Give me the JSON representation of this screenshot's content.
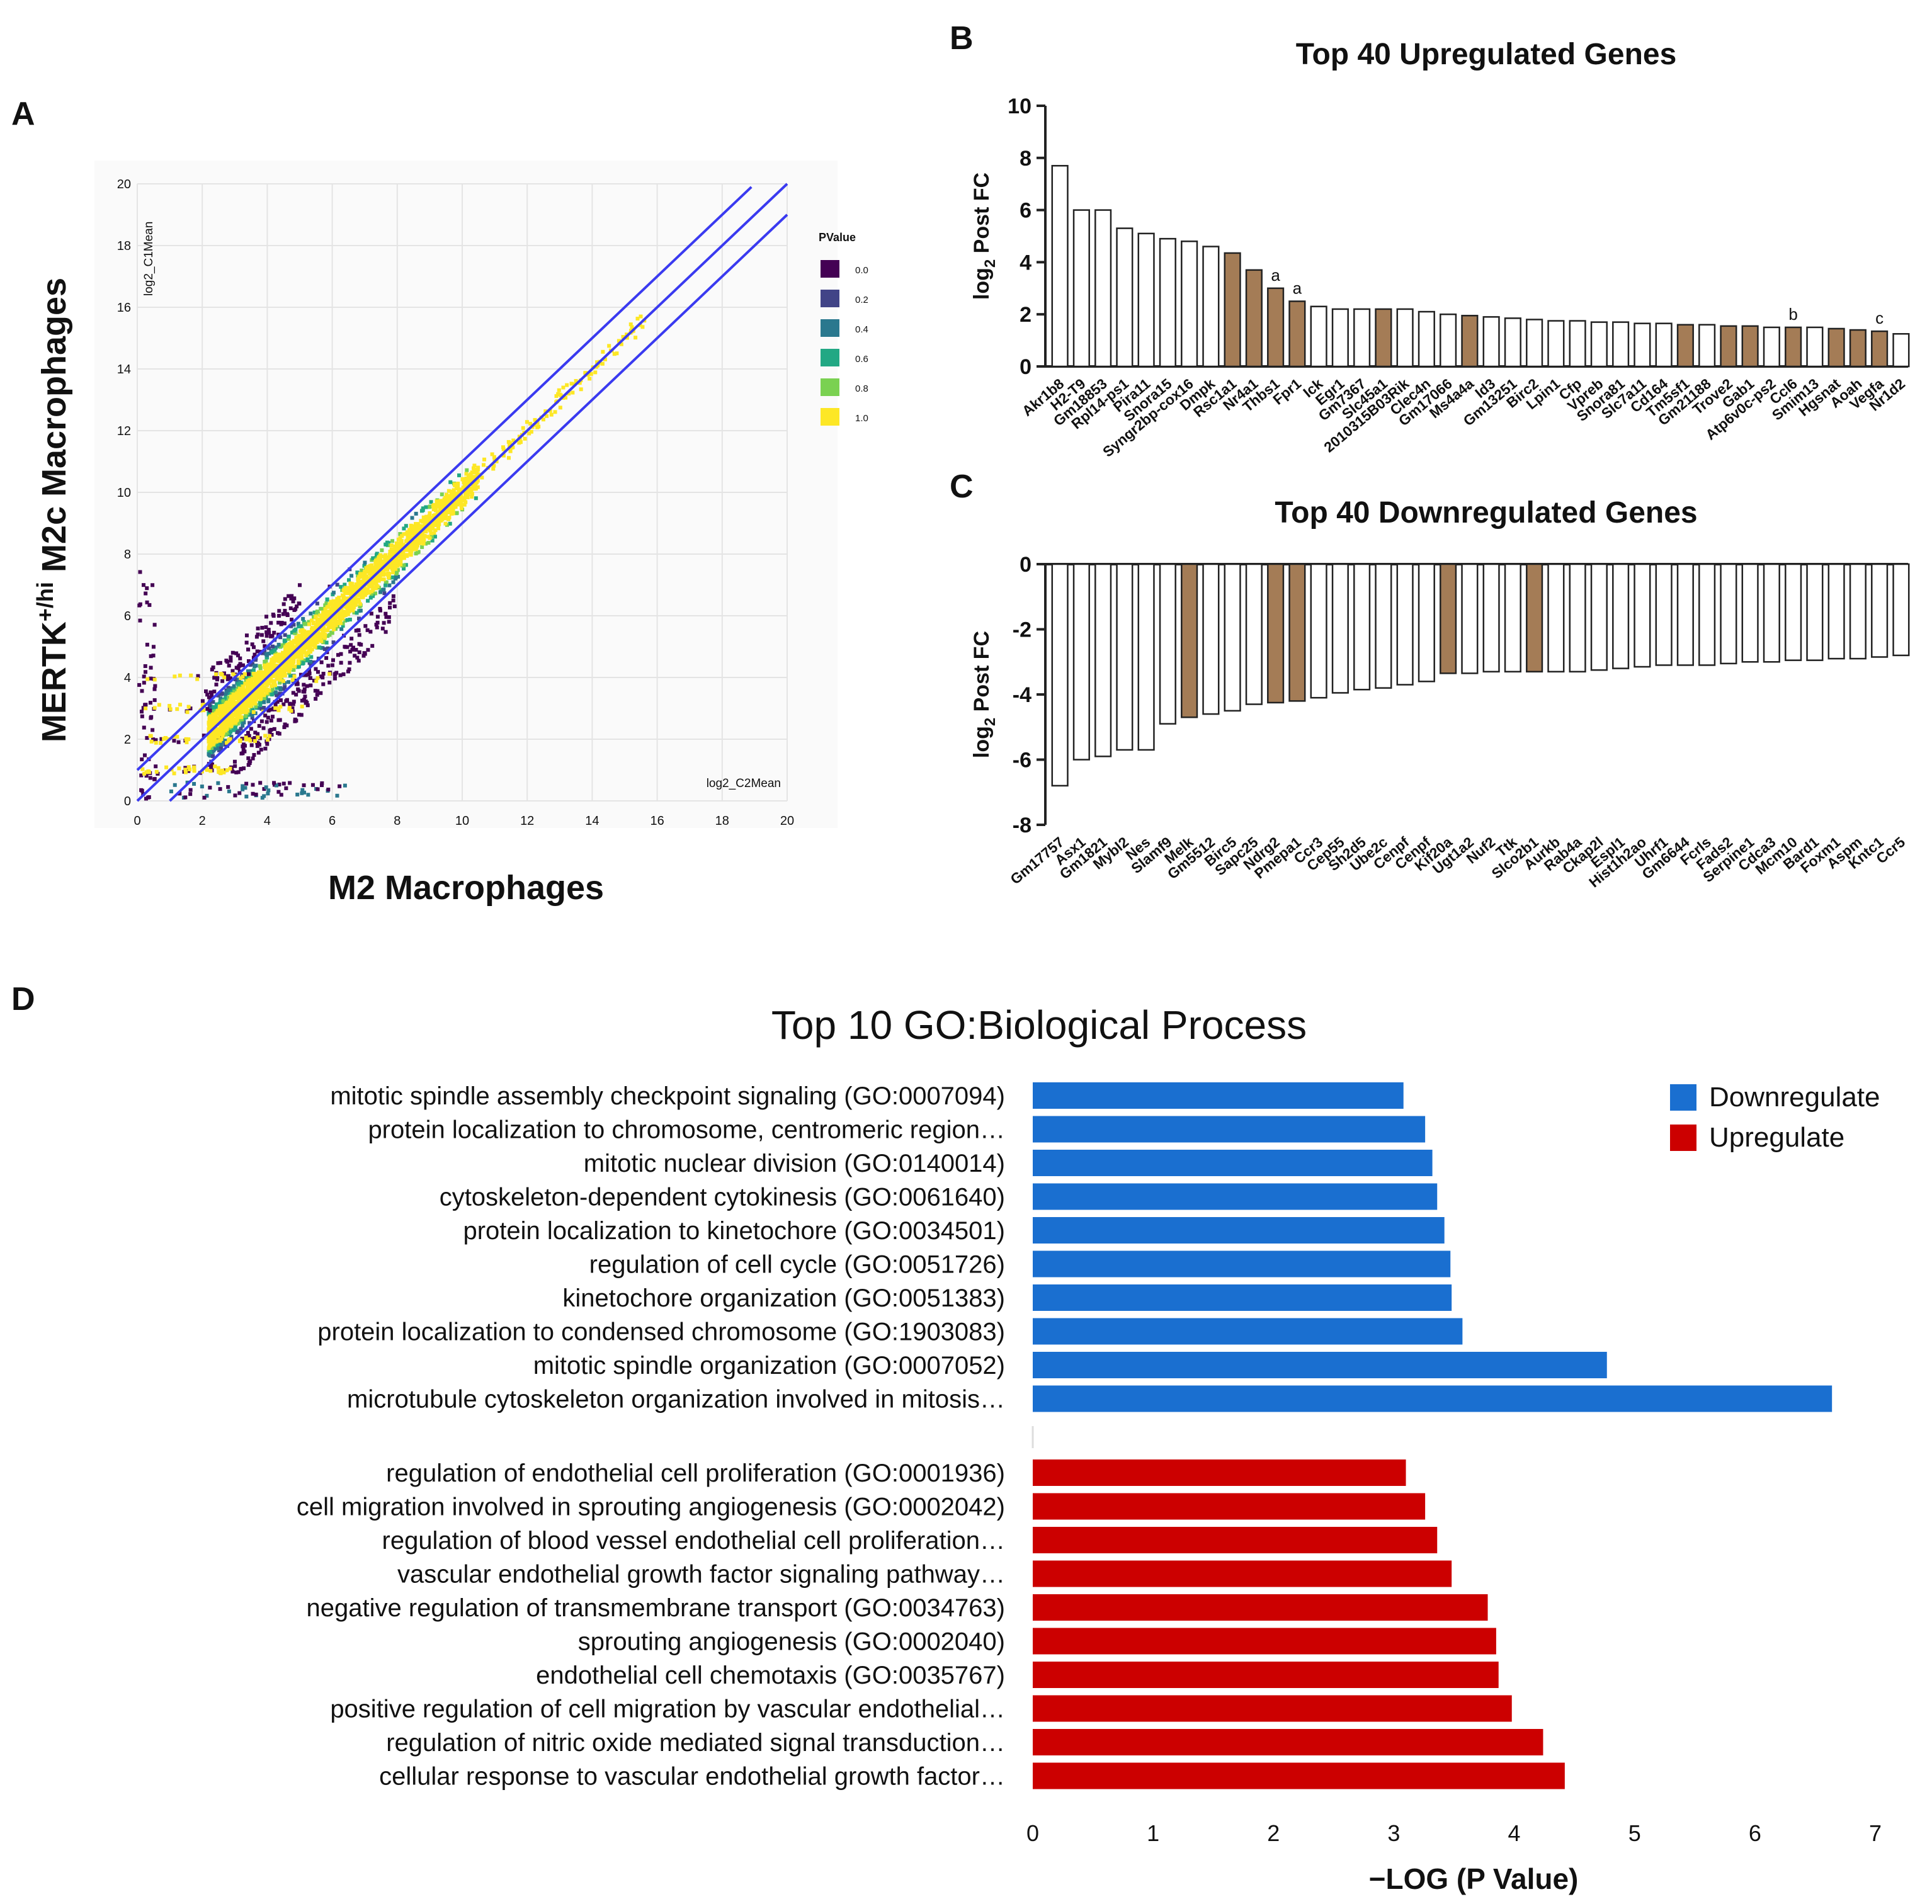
{
  "panels": {
    "a": "A",
    "b": "B",
    "c": "C",
    "d": "D"
  },
  "chart_data": [
    {
      "id": "A",
      "type": "scatter",
      "xlabel": "M2 Macrophages",
      "ylabel": "MERTK",
      "ylabel_sup": "+/hi",
      "ylabel_rest": " M2c Macrophages",
      "inner_xlabel": "log2_C2Mean",
      "inner_ylabel": "log2_C1Mean",
      "xlim": [
        0,
        20
      ],
      "ylim": [
        0,
        20
      ],
      "x_ticks": [
        0,
        2,
        4,
        6,
        8,
        10,
        12,
        14,
        16,
        18,
        20
      ],
      "y_ticks": [
        0,
        2,
        4,
        6,
        8,
        10,
        12,
        14,
        16,
        18,
        20
      ],
      "legend_title": "PValue",
      "legend_items": [
        {
          "label": "0.0",
          "color": "#440154"
        },
        {
          "label": "0.2",
          "color": "#414487"
        },
        {
          "label": "0.4",
          "color": "#2a788e"
        },
        {
          "label": "0.6",
          "color": "#22a884"
        },
        {
          "label": "0.8",
          "color": "#7ad151"
        },
        {
          "label": "1.0",
          "color": "#fde725"
        }
      ],
      "reference_lines": [
        {
          "intercept": 1.0,
          "slope": 1.0
        },
        {
          "intercept": 0.0,
          "slope": 1.0
        },
        {
          "intercept": -1.0,
          "slope": 1.0
        }
      ],
      "line_color": "#3a3af0"
    },
    {
      "id": "B",
      "type": "bar",
      "title": "Top 40 Upregulated Genes",
      "ylabel": "log",
      "ylabel_sub": "2",
      "ylabel_rest": " Post FC",
      "ylim": [
        0,
        10
      ],
      "y_ticks": [
        0,
        2,
        4,
        6,
        8,
        10
      ],
      "categories": [
        "Akr1b8",
        "H2-T9",
        "Gm18853",
        "Rpl14-ps1",
        "Pira11",
        "Snora15",
        "Syngr2bp-cox16",
        "Dmpk",
        "Rsc1a1",
        "Nr4a1",
        "Thbs1",
        "Fpr1",
        "Ick",
        "Egr1",
        "Gm7367",
        "Slc45a1",
        "2010315B03Rik",
        "Clec4n",
        "Gm17066",
        "Ms4a4a",
        "Id3",
        "Gm13251",
        "Birc2",
        "Lpin1",
        "Cfp",
        "Vpreb",
        "Snora81",
        "Slc7a11",
        "Cd164",
        "Tm5sf1",
        "Gm21188",
        "Trove2",
        "Gab1",
        "Atp6v0c-ps2",
        "Ccl6",
        "Smim13",
        "Hgsnat",
        "Aoah",
        "Vegfa",
        "Nr1d2"
      ],
      "values": [
        7.7,
        6.0,
        6.0,
        5.3,
        5.1,
        4.9,
        4.8,
        4.6,
        4.35,
        3.7,
        3.0,
        2.5,
        2.3,
        2.2,
        2.2,
        2.2,
        2.2,
        2.1,
        2.0,
        1.95,
        1.9,
        1.85,
        1.8,
        1.75,
        1.75,
        1.7,
        1.7,
        1.65,
        1.65,
        1.6,
        1.6,
        1.55,
        1.55,
        1.5,
        1.5,
        1.5,
        1.45,
        1.4,
        1.35,
        1.25
      ],
      "highlighted": [
        false,
        false,
        false,
        false,
        false,
        false,
        false,
        false,
        true,
        true,
        true,
        true,
        false,
        false,
        false,
        true,
        false,
        false,
        false,
        true,
        false,
        false,
        false,
        false,
        false,
        false,
        false,
        false,
        false,
        true,
        false,
        true,
        true,
        false,
        true,
        false,
        true,
        true,
        true,
        false
      ],
      "annotations": [
        "",
        "",
        "",
        "",
        "",
        "",
        "",
        "",
        "",
        "",
        "a",
        "a",
        "",
        "",
        "",
        "",
        "",
        "",
        "",
        "",
        "",
        "",
        "",
        "",
        "",
        "",
        "",
        "",
        "",
        "",
        "",
        "",
        "",
        "",
        "b",
        "",
        "",
        "",
        "c",
        ""
      ],
      "highlight_color": "#a47c56"
    },
    {
      "id": "C",
      "type": "bar",
      "title": "Top 40 Downregulated Genes",
      "ylabel": "log",
      "ylabel_sub": "2",
      "ylabel_rest": " Post FC",
      "ylim": [
        -8,
        0
      ],
      "y_ticks": [
        0,
        -2,
        -4,
        -6,
        -8
      ],
      "categories": [
        "Gm17757",
        "Asx1",
        "Gm1821",
        "Mybl2",
        "Nes",
        "Slamf9",
        "Melk",
        "Gm5512",
        "Birc5",
        "Sapc25",
        "Ndrg2",
        "Pmepa1",
        "Ccr3",
        "Cep55",
        "Sh2d5",
        "Ube2c",
        "Cenpf",
        "Cenpf",
        "Kif20a",
        "Ugt1a2",
        "Nuf2",
        "Ttk",
        "Slco2b1",
        "Aurkb",
        "Rab4a",
        "Ckap2l",
        "Espl1",
        "Hist1h2ao",
        "Uhrf1",
        "Gm6644",
        "Fcrls",
        "Fads2",
        "Serpine1",
        "Cdca3",
        "Mcm10",
        "Bard1",
        "Foxm1",
        "Aspm",
        "Kntc1",
        "Ccr5"
      ],
      "values": [
        -6.8,
        -6.0,
        -5.9,
        -5.7,
        -5.7,
        -4.9,
        -4.7,
        -4.6,
        -4.5,
        -4.3,
        -4.25,
        -4.2,
        -4.1,
        -3.95,
        -3.85,
        -3.8,
        -3.7,
        -3.6,
        -3.35,
        -3.35,
        -3.3,
        -3.3,
        -3.3,
        -3.3,
        -3.3,
        -3.25,
        -3.2,
        -3.15,
        -3.1,
        -3.1,
        -3.1,
        -3.05,
        -3.0,
        -3.0,
        -2.95,
        -2.95,
        -2.9,
        -2.9,
        -2.85,
        -2.8
      ],
      "highlighted": [
        false,
        false,
        false,
        false,
        false,
        false,
        true,
        false,
        false,
        false,
        true,
        true,
        false,
        false,
        false,
        false,
        false,
        false,
        true,
        false,
        false,
        false,
        true,
        false,
        false,
        false,
        false,
        false,
        false,
        false,
        false,
        false,
        false,
        false,
        false,
        false,
        false,
        false,
        false,
        false
      ],
      "highlight_color": "#a47c56"
    },
    {
      "id": "D",
      "type": "bar",
      "orientation": "horizontal",
      "title": "Top 10 GO:Biological Process",
      "xlabel": "−LOG (P Value)",
      "xlim": [
        0,
        7
      ],
      "x_ticks": [
        0,
        1,
        2,
        3,
        4,
        5,
        6,
        7
      ],
      "legend": [
        {
          "label": "Downregulate",
          "color": "#1a6fd0"
        },
        {
          "label": "Upregulate",
          "color": "#cc0000"
        }
      ],
      "series": [
        {
          "name": "Downregulate",
          "color": "#1a6fd0",
          "categories": [
            "mitotic spindle assembly checkpoint signaling (GO:0007094)",
            "protein localization to chromosome, centromeric region…",
            "mitotic nuclear division (GO:0140014)",
            "cytoskeleton-dependent cytokinesis (GO:0061640)",
            "protein localization to kinetochore (GO:0034501)",
            "regulation of cell cycle (GO:0051726)",
            "kinetochore organization (GO:0051383)",
            "protein localization to condensed chromosome (GO:1903083)",
            "mitotic spindle organization (GO:0007052)",
            "microtubule cytoskeleton organization involved in mitosis…"
          ],
          "values": [
            3.08,
            3.26,
            3.32,
            3.36,
            3.42,
            3.47,
            3.48,
            3.57,
            4.77,
            6.64
          ]
        },
        {
          "name": "Upregulate",
          "color": "#cc0000",
          "categories": [
            "regulation of endothelial cell proliferation (GO:0001936)",
            "cell migration involved in sprouting angiogenesis (GO:0002042)",
            "regulation of blood vessel endothelial cell proliferation…",
            "vascular endothelial growth factor signaling pathway…",
            "negative regulation of transmembrane transport (GO:0034763)",
            "sprouting angiogenesis (GO:0002040)",
            "endothelial cell chemotaxis (GO:0035767)",
            "positive regulation of cell migration by vascular endothelial…",
            "regulation of nitric oxide mediated signal transduction…",
            "cellular response to vascular endothelial growth factor…"
          ],
          "values": [
            3.1,
            3.26,
            3.36,
            3.48,
            3.78,
            3.85,
            3.87,
            3.98,
            4.24,
            4.42
          ]
        }
      ]
    }
  ]
}
